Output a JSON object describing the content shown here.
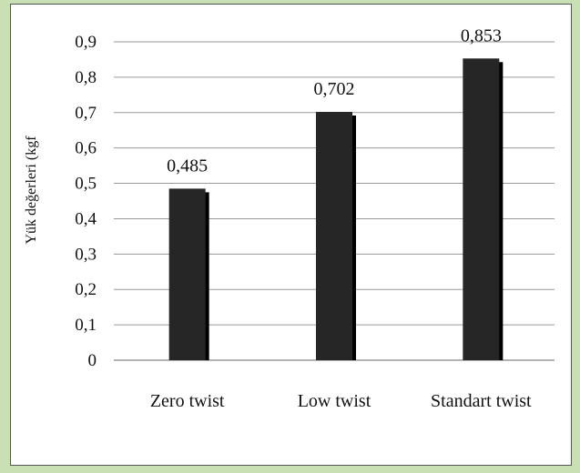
{
  "chart_data": {
    "type": "bar",
    "categories": [
      "Zero twist",
      "Low twist",
      "Standart twist"
    ],
    "values": [
      0.485,
      0.702,
      0.853
    ],
    "data_labels": [
      "0,485",
      "0,702",
      "0,853"
    ],
    "ylabel": "Yük değerleri (kgf",
    "xlabel": "",
    "ylim": [
      0,
      0.9
    ],
    "yticks": [
      0,
      0.1,
      0.2,
      0.3,
      0.4,
      0.5,
      0.6,
      0.7,
      0.8,
      0.9
    ],
    "ytick_labels": [
      "0",
      "0,1",
      "0,2",
      "0,3",
      "0,4",
      "0,5",
      "0,6",
      "0,7",
      "0,8",
      "0,9"
    ],
    "grid": true,
    "legend": "none",
    "colors": {
      "bar": "#262626",
      "bar_shadow": "#000000",
      "grid": "#9a9a9a",
      "text": "#111111",
      "frame_border": "#555555",
      "outer_background": "#c9dfb4"
    }
  }
}
